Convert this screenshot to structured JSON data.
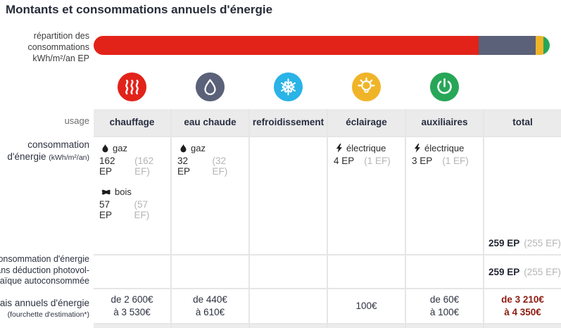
{
  "title": "Montants et consommations annuels d'énergie",
  "colors": {
    "heating_red": "#e2231a",
    "hot_water_slate": "#5a6178",
    "cooling_blue": "#29b3e6",
    "lighting_yellow": "#f0b429",
    "auxiliary_green": "#27a658",
    "cost_total_red": "#8d1b10",
    "header_gray": "#ebebeb"
  },
  "distribution": {
    "label_line1": "répartition des",
    "label_line2": "consommations",
    "label_line3": "kWh/m²/an EP",
    "segments": [
      {
        "name": "chauffage",
        "color": "#e2231a",
        "percent": 84.4
      },
      {
        "name": "eau chaude",
        "color": "#5a6178",
        "percent": 12.5
      },
      {
        "name": "éclairage",
        "color": "#f0b429",
        "percent": 1.7
      },
      {
        "name": "auxiliaires",
        "color": "#27a658",
        "percent": 1.4
      }
    ]
  },
  "chart_data": [
    {
      "type": "bar",
      "orientation": "horizontal-stacked",
      "title": "répartition des consommations kWh/m²/an EP",
      "categories": [
        "chauffage",
        "eau chaude",
        "éclairage",
        "auxiliaires"
      ],
      "values": [
        219,
        32,
        4,
        3
      ],
      "unit": "kWh/m²/an EP",
      "colors": [
        "#e2231a",
        "#5a6178",
        "#f0b429",
        "#27a658"
      ]
    },
    {
      "type": "table",
      "columns": [
        "usage",
        "chauffage",
        "eau chaude",
        "refroidissement",
        "éclairage",
        "auxiliaires",
        "total"
      ],
      "rows": [
        [
          "consommation d'énergie (kWh/m²/an)",
          "gaz 162 EP (162 EF) / bois 57 EP (57 EF)",
          "gaz 32 EP (32 EF)",
          "",
          "électrique 4 EP (1 EF)",
          "électrique 3 EP (1 EF)",
          "259 EP (255 EF)"
        ],
        [
          "consommation d'énergie sans déduction photovoltaïque autoconsommée",
          "",
          "",
          "",
          "",
          "",
          "259 EP (255 EF)"
        ],
        [
          "frais annuels d'énergie (fourchette d'estimation*)",
          "de 2 600€ à 3 530€",
          "de 440€ à 610€",
          "",
          "100€",
          "de 60€ à 100€",
          "de 3 210€ à 4 350€"
        ]
      ]
    }
  ],
  "table": {
    "usage_label": "usage",
    "columns": [
      "chauffage",
      "eau chaude",
      "refroidissement",
      "éclairage",
      "auxiliaires",
      "total"
    ],
    "consumption": {
      "label_line1": "consommation",
      "label_line2": "d'énergie ",
      "label_unit": "(kWh/m²/an)",
      "chauffage": [
        {
          "source": "gaz",
          "ep": "162 EP",
          "ef": "(162 EF)"
        },
        {
          "source": "bois",
          "ep": "57 EP",
          "ef": "(57 EF)"
        }
      ],
      "eau_chaude": [
        {
          "source": "gaz",
          "ep": "32 EP",
          "ef": "(32 EF)"
        }
      ],
      "eclairage": [
        {
          "source": "électrique",
          "ep": "4 EP",
          "ef": "(1 EF)"
        }
      ],
      "auxiliaires": [
        {
          "source": "électrique",
          "ep": "3 EP",
          "ef": "(1 EF)"
        }
      ],
      "total": {
        "ep": "259 EP",
        "ef": "(255 EF)"
      }
    },
    "no_deduction": {
      "label_line1": "consommation d'énergie",
      "label_line2": "sans déduction photovol-",
      "label_line3": "taïque autoconsommée",
      "total": {
        "ep": "259 EP",
        "ef": "(255 EF)"
      }
    },
    "costs": {
      "label": "frais annuels d'énergie",
      "label_sub": "(fourchette d'estimation*)",
      "chauffage_l1": "de 2 600€",
      "chauffage_l2": "à 3 530€",
      "eau_chaude_l1": "de 440€",
      "eau_chaude_l2": "à 610€",
      "eclairage": "100€",
      "auxiliaires_l1": "de 60€",
      "auxiliaires_l2": "à 100€",
      "total_l1": "de 3 210€",
      "total_l2": "à 4 350€"
    }
  }
}
